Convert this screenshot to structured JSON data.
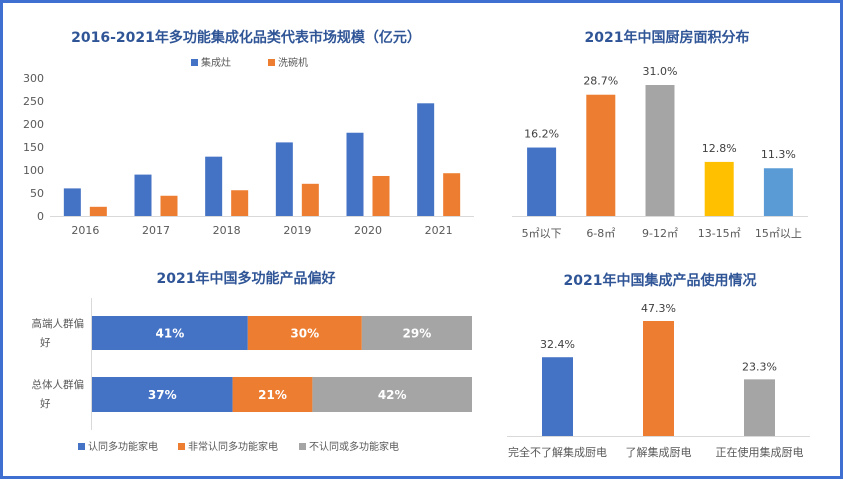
{
  "colors": {
    "blue": "#4472c4",
    "orange": "#ed7d31",
    "gray": "#a5a5a5",
    "yellow": "#ffc000",
    "lightblue": "#5b9bd5",
    "title": "#2f5597",
    "frame": "#3f6fd1"
  },
  "chart_data": [
    {
      "type": "bar",
      "title": "2016-2021年多功能集成化品类代表市场规模（亿元）",
      "categories": [
        "2016",
        "2017",
        "2018",
        "2019",
        "2020",
        "2021"
      ],
      "series": [
        {
          "name": "集成灶",
          "values": [
            60,
            90,
            129,
            160,
            181,
            245
          ]
        },
        {
          "name": "洗碗机",
          "values": [
            20,
            44,
            56,
            70,
            87,
            93
          ]
        }
      ],
      "yticks": [
        "0",
        "50",
        "100",
        "150",
        "200",
        "250",
        "300"
      ],
      "ylim": [
        0,
        300
      ],
      "legend": "top-center"
    },
    {
      "type": "bar",
      "title": "2021年中国厨房面积分布",
      "categories": [
        "5㎡以下",
        "6-8㎡",
        "9-12㎡",
        "13-15㎡",
        "15㎡以上"
      ],
      "values": [
        16.2,
        28.7,
        31.0,
        12.8,
        11.3
      ],
      "labels": [
        "16.2%",
        "28.7%",
        "31.0%",
        "12.8%",
        "11.3%"
      ],
      "ylim": [
        0,
        35
      ]
    },
    {
      "type": "bar",
      "orientation": "horizontal-stacked",
      "title": "2021年中国多功能产品偏好",
      "categories": [
        "高端人群偏好",
        "总体人群偏好"
      ],
      "series": [
        {
          "name": "认同多功能家电",
          "values": [
            41,
            37
          ],
          "labels": [
            "41%",
            "37%"
          ]
        },
        {
          "name": "非常认同多功能家电",
          "values": [
            30,
            21
          ],
          "labels": [
            "30%",
            "21%"
          ]
        },
        {
          "name": "不认同或多功能家电",
          "values": [
            29,
            42
          ],
          "labels": [
            "29%",
            "42%"
          ]
        }
      ],
      "legend": "bottom"
    },
    {
      "type": "bar",
      "title": "2021年中国集成产品使用情况",
      "categories": [
        "完全不了解集成厨电",
        "了解集成厨电",
        "正在使用集成厨电"
      ],
      "values": [
        32.4,
        47.3,
        23.3
      ],
      "labels": [
        "32.4%",
        "47.3%",
        "23.3%"
      ],
      "ylim": [
        0,
        50
      ]
    }
  ]
}
